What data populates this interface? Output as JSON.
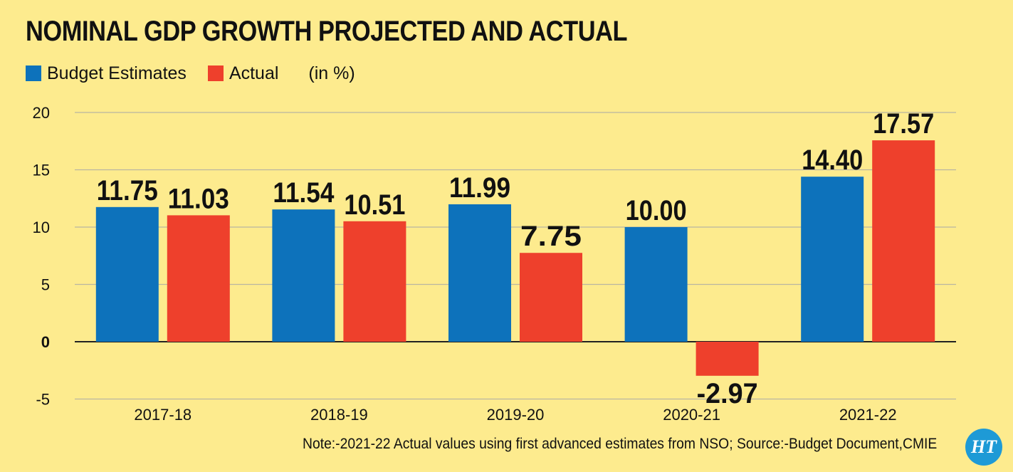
{
  "chart_data": {
    "type": "bar",
    "title": "NOMINAL GDP GROWTH PROJECTED AND ACTUAL",
    "unit_label": "(in %)",
    "categories": [
      "2017-18",
      "2018-19",
      "2019-20",
      "2020-21",
      "2021-22"
    ],
    "series": [
      {
        "name": "Budget Estimates",
        "color": "#0d72bb",
        "values": [
          11.75,
          11.54,
          11.99,
          10.0,
          14.4
        ],
        "labels": [
          "11.75",
          "11.54",
          "11.99",
          "10.00",
          "14.40"
        ]
      },
      {
        "name": "Actual",
        "color": "#ee402c",
        "values": [
          11.03,
          10.51,
          7.75,
          -2.97,
          17.57
        ],
        "labels": [
          "11.03",
          "10.51",
          "7.75",
          "-2.97",
          "17.57"
        ]
      }
    ],
    "ylim": [
      -5,
      20
    ],
    "yticks": [
      20,
      15,
      10,
      5,
      0,
      -5
    ],
    "grid": true,
    "legend_position": "top-left",
    "xlabel": "",
    "ylabel": ""
  },
  "note": "Note:-2021-22 Actual values  using first advanced estimates from NSO; Source:-Budget Document,CMIE",
  "logo_text": "HT"
}
